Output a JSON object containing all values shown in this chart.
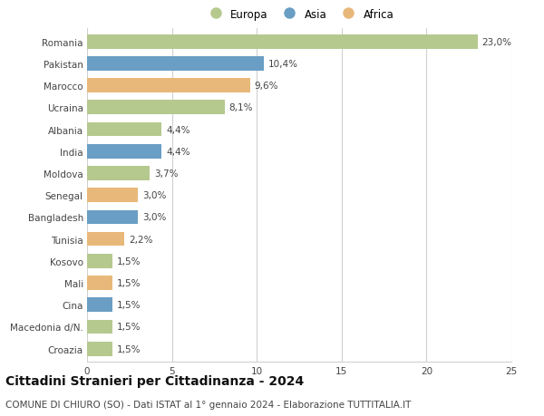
{
  "countries": [
    "Romania",
    "Pakistan",
    "Marocco",
    "Ucraina",
    "Albania",
    "India",
    "Moldova",
    "Senegal",
    "Bangladesh",
    "Tunisia",
    "Kosovo",
    "Mali",
    "Cina",
    "Macedonia d/N.",
    "Croazia"
  ],
  "values": [
    23.0,
    10.4,
    9.6,
    8.1,
    4.4,
    4.4,
    3.7,
    3.0,
    3.0,
    2.2,
    1.5,
    1.5,
    1.5,
    1.5,
    1.5
  ],
  "labels": [
    "23,0%",
    "10,4%",
    "9,6%",
    "8,1%",
    "4,4%",
    "4,4%",
    "3,7%",
    "3,0%",
    "3,0%",
    "2,2%",
    "1,5%",
    "1,5%",
    "1,5%",
    "1,5%",
    "1,5%"
  ],
  "continents": [
    "Europa",
    "Asia",
    "Africa",
    "Europa",
    "Europa",
    "Asia",
    "Europa",
    "Africa",
    "Asia",
    "Africa",
    "Europa",
    "Africa",
    "Asia",
    "Europa",
    "Europa"
  ],
  "colors": {
    "Europa": "#b5c98e",
    "Asia": "#6a9ec4",
    "Africa": "#e8b87a"
  },
  "legend_order": [
    "Europa",
    "Asia",
    "Africa"
  ],
  "xlim": [
    0,
    25
  ],
  "xticks": [
    0,
    5,
    10,
    15,
    20,
    25
  ],
  "title": "Cittadini Stranieri per Cittadinanza - 2024",
  "subtitle": "COMUNE DI CHIURO (SO) - Dati ISTAT al 1° gennaio 2024 - Elaborazione TUTTITALIA.IT",
  "title_fontsize": 10,
  "subtitle_fontsize": 7.5,
  "label_fontsize": 7.5,
  "tick_fontsize": 7.5,
  "legend_fontsize": 8.5,
  "background_color": "#ffffff",
  "grid_color": "#d0d0d0"
}
